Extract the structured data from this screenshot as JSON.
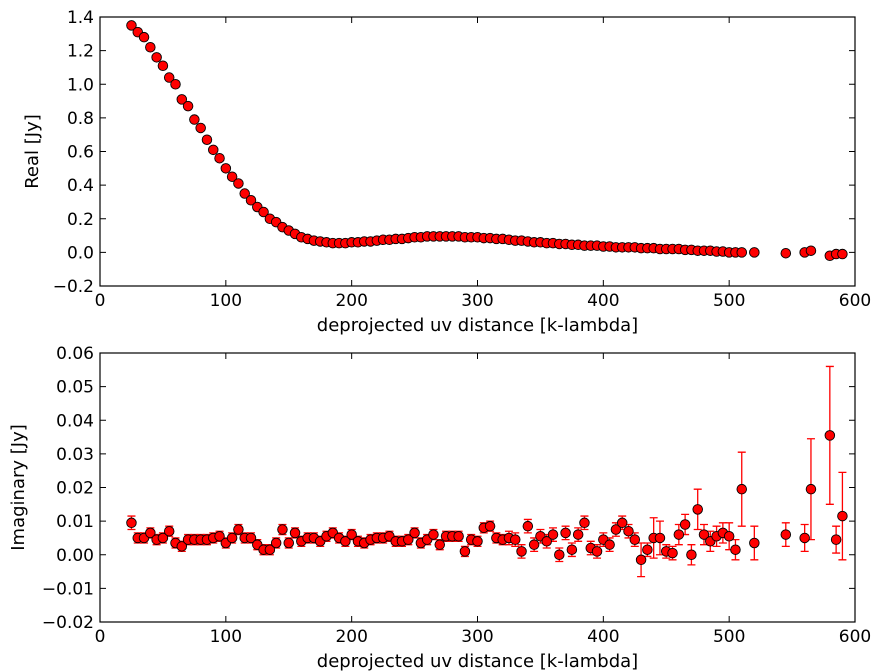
{
  "chart_data": [
    {
      "type": "scatter",
      "xlabel": "deprojected uv distance [k-lambda]",
      "ylabel": "Real [Jy]",
      "xlim": [
        0,
        600
      ],
      "ylim": [
        -0.2,
        1.4
      ],
      "xticks": [
        0,
        100,
        200,
        300,
        400,
        500,
        600
      ],
      "xtick_labels": [
        "0",
        "100",
        "200",
        "300",
        "400",
        "500",
        "600"
      ],
      "yticks": [
        -0.2,
        0.0,
        0.2,
        0.4,
        0.6,
        0.8,
        1.0,
        1.2,
        1.4
      ],
      "ytick_labels": [
        "−0.2",
        "0.0",
        "0.2",
        "0.4",
        "0.6",
        "0.8",
        "1.0",
        "1.2",
        "1.4"
      ],
      "grid": false,
      "marker_color": "#ff0000",
      "x": [
        25,
        30,
        35,
        40,
        45,
        50,
        55,
        60,
        65,
        70,
        75,
        80,
        85,
        90,
        95,
        100,
        105,
        110,
        115,
        120,
        125,
        130,
        135,
        140,
        145,
        150,
        155,
        160,
        165,
        170,
        175,
        180,
        185,
        190,
        195,
        200,
        205,
        210,
        215,
        220,
        225,
        230,
        235,
        240,
        245,
        250,
        255,
        260,
        265,
        270,
        275,
        280,
        285,
        290,
        295,
        300,
        305,
        310,
        315,
        320,
        325,
        330,
        335,
        340,
        345,
        350,
        355,
        360,
        365,
        370,
        375,
        380,
        385,
        390,
        395,
        400,
        405,
        410,
        415,
        420,
        425,
        430,
        435,
        440,
        445,
        450,
        455,
        460,
        465,
        470,
        475,
        480,
        485,
        490,
        495,
        500,
        505,
        510,
        520,
        545,
        560,
        565,
        580,
        585,
        590
      ],
      "y": [
        1.35,
        1.31,
        1.28,
        1.22,
        1.16,
        1.11,
        1.04,
        1.0,
        0.91,
        0.87,
        0.79,
        0.74,
        0.67,
        0.61,
        0.56,
        0.5,
        0.45,
        0.41,
        0.35,
        0.31,
        0.27,
        0.24,
        0.2,
        0.18,
        0.15,
        0.13,
        0.11,
        0.09,
        0.08,
        0.07,
        0.065,
        0.06,
        0.055,
        0.055,
        0.055,
        0.06,
        0.06,
        0.065,
        0.065,
        0.07,
        0.075,
        0.075,
        0.08,
        0.08,
        0.085,
        0.09,
        0.09,
        0.095,
        0.095,
        0.095,
        0.095,
        0.095,
        0.095,
        0.09,
        0.09,
        0.09,
        0.085,
        0.085,
        0.08,
        0.08,
        0.075,
        0.07,
        0.07,
        0.065,
        0.06,
        0.06,
        0.055,
        0.055,
        0.05,
        0.05,
        0.045,
        0.045,
        0.04,
        0.04,
        0.04,
        0.035,
        0.035,
        0.03,
        0.03,
        0.03,
        0.03,
        0.025,
        0.025,
        0.025,
        0.02,
        0.02,
        0.02,
        0.02,
        0.015,
        0.015,
        0.01,
        0.01,
        0.01,
        0.005,
        0.005,
        0.0,
        0.0,
        0.0,
        0.0,
        -0.005,
        0.0,
        0.01,
        -0.02,
        -0.01,
        -0.01
      ]
    },
    {
      "type": "scatter",
      "xlabel": "deprojected uv distance [k-lambda]",
      "ylabel": "Imaginary [Jy]",
      "xlim": [
        0,
        600
      ],
      "ylim": [
        -0.02,
        0.06
      ],
      "xticks": [
        0,
        100,
        200,
        300,
        400,
        500,
        600
      ],
      "xtick_labels": [
        "0",
        "100",
        "200",
        "300",
        "400",
        "500",
        "600"
      ],
      "yticks": [
        -0.02,
        -0.01,
        0.0,
        0.01,
        0.02,
        0.03,
        0.04,
        0.05,
        0.06
      ],
      "ytick_labels": [
        "−0.02",
        "−0.01",
        "0.00",
        "0.01",
        "0.02",
        "0.03",
        "0.04",
        "0.05",
        "0.06"
      ],
      "grid": false,
      "marker_color": "#ff0000",
      "errorbars": true,
      "x": [
        25,
        30,
        35,
        40,
        45,
        50,
        55,
        60,
        65,
        70,
        75,
        80,
        85,
        90,
        95,
        100,
        105,
        110,
        115,
        120,
        125,
        130,
        135,
        140,
        145,
        150,
        155,
        160,
        165,
        170,
        175,
        180,
        185,
        190,
        195,
        200,
        205,
        210,
        215,
        220,
        225,
        230,
        235,
        240,
        245,
        250,
        255,
        260,
        265,
        270,
        275,
        280,
        285,
        290,
        295,
        300,
        305,
        310,
        315,
        320,
        325,
        330,
        335,
        340,
        345,
        350,
        355,
        360,
        365,
        370,
        375,
        380,
        385,
        390,
        395,
        400,
        405,
        410,
        415,
        420,
        425,
        430,
        435,
        440,
        445,
        450,
        455,
        460,
        465,
        470,
        475,
        480,
        485,
        490,
        495,
        500,
        505,
        510,
        520,
        545,
        560,
        565,
        580,
        585,
        590
      ],
      "y": [
        0.0095,
        0.005,
        0.005,
        0.0065,
        0.0045,
        0.005,
        0.007,
        0.0035,
        0.0025,
        0.0045,
        0.0045,
        0.0045,
        0.0045,
        0.005,
        0.0055,
        0.0035,
        0.005,
        0.0075,
        0.005,
        0.005,
        0.003,
        0.0015,
        0.0015,
        0.0035,
        0.0075,
        0.0035,
        0.0065,
        0.004,
        0.005,
        0.005,
        0.004,
        0.0055,
        0.0065,
        0.005,
        0.004,
        0.006,
        0.004,
        0.0035,
        0.0045,
        0.005,
        0.005,
        0.0055,
        0.004,
        0.004,
        0.0045,
        0.0065,
        0.0035,
        0.0045,
        0.006,
        0.003,
        0.0055,
        0.0055,
        0.0055,
        0.001,
        0.0045,
        0.004,
        0.008,
        0.0085,
        0.005,
        0.0045,
        0.005,
        0.0045,
        0.001,
        0.0085,
        0.003,
        0.0055,
        0.004,
        0.006,
        0.0,
        0.0065,
        0.0015,
        0.006,
        0.0095,
        0.002,
        0.001,
        0.0045,
        0.003,
        0.0075,
        0.0095,
        0.007,
        0.0045,
        -0.0015,
        0.0015,
        0.005,
        0.005,
        0.001,
        0.0005,
        0.006,
        0.009,
        0.0,
        0.0135,
        0.006,
        0.004,
        0.0055,
        0.0065,
        0.0055,
        0.0015,
        0.0195,
        0.0035,
        0.006,
        0.005,
        0.0195,
        0.0355,
        0.0045,
        0.0115
      ],
      "yerr": [
        0.002,
        0.0015,
        0.0015,
        0.0015,
        0.0015,
        0.0015,
        0.0015,
        0.0015,
        0.0015,
        0.0015,
        0.0015,
        0.0015,
        0.0015,
        0.0015,
        0.0015,
        0.0015,
        0.0015,
        0.0015,
        0.0015,
        0.0015,
        0.0015,
        0.0015,
        0.0015,
        0.0015,
        0.0015,
        0.0015,
        0.0015,
        0.0015,
        0.0015,
        0.0015,
        0.0015,
        0.0015,
        0.0015,
        0.0015,
        0.0015,
        0.0015,
        0.0015,
        0.0015,
        0.0015,
        0.0015,
        0.0015,
        0.0015,
        0.0015,
        0.0015,
        0.0015,
        0.0015,
        0.0015,
        0.0015,
        0.0015,
        0.0015,
        0.0015,
        0.0015,
        0.0015,
        0.0015,
        0.0015,
        0.0015,
        0.0015,
        0.0015,
        0.0015,
        0.0015,
        0.002,
        0.002,
        0.002,
        0.002,
        0.002,
        0.002,
        0.002,
        0.002,
        0.002,
        0.002,
        0.002,
        0.002,
        0.002,
        0.002,
        0.002,
        0.002,
        0.002,
        0.002,
        0.002,
        0.002,
        0.002,
        0.005,
        0.002,
        0.006,
        0.005,
        0.002,
        0.002,
        0.003,
        0.003,
        0.003,
        0.006,
        0.003,
        0.003,
        0.003,
        0.003,
        0.004,
        0.003,
        0.011,
        0.005,
        0.0035,
        0.004,
        0.015,
        0.0205,
        0.004,
        0.013
      ]
    }
  ]
}
